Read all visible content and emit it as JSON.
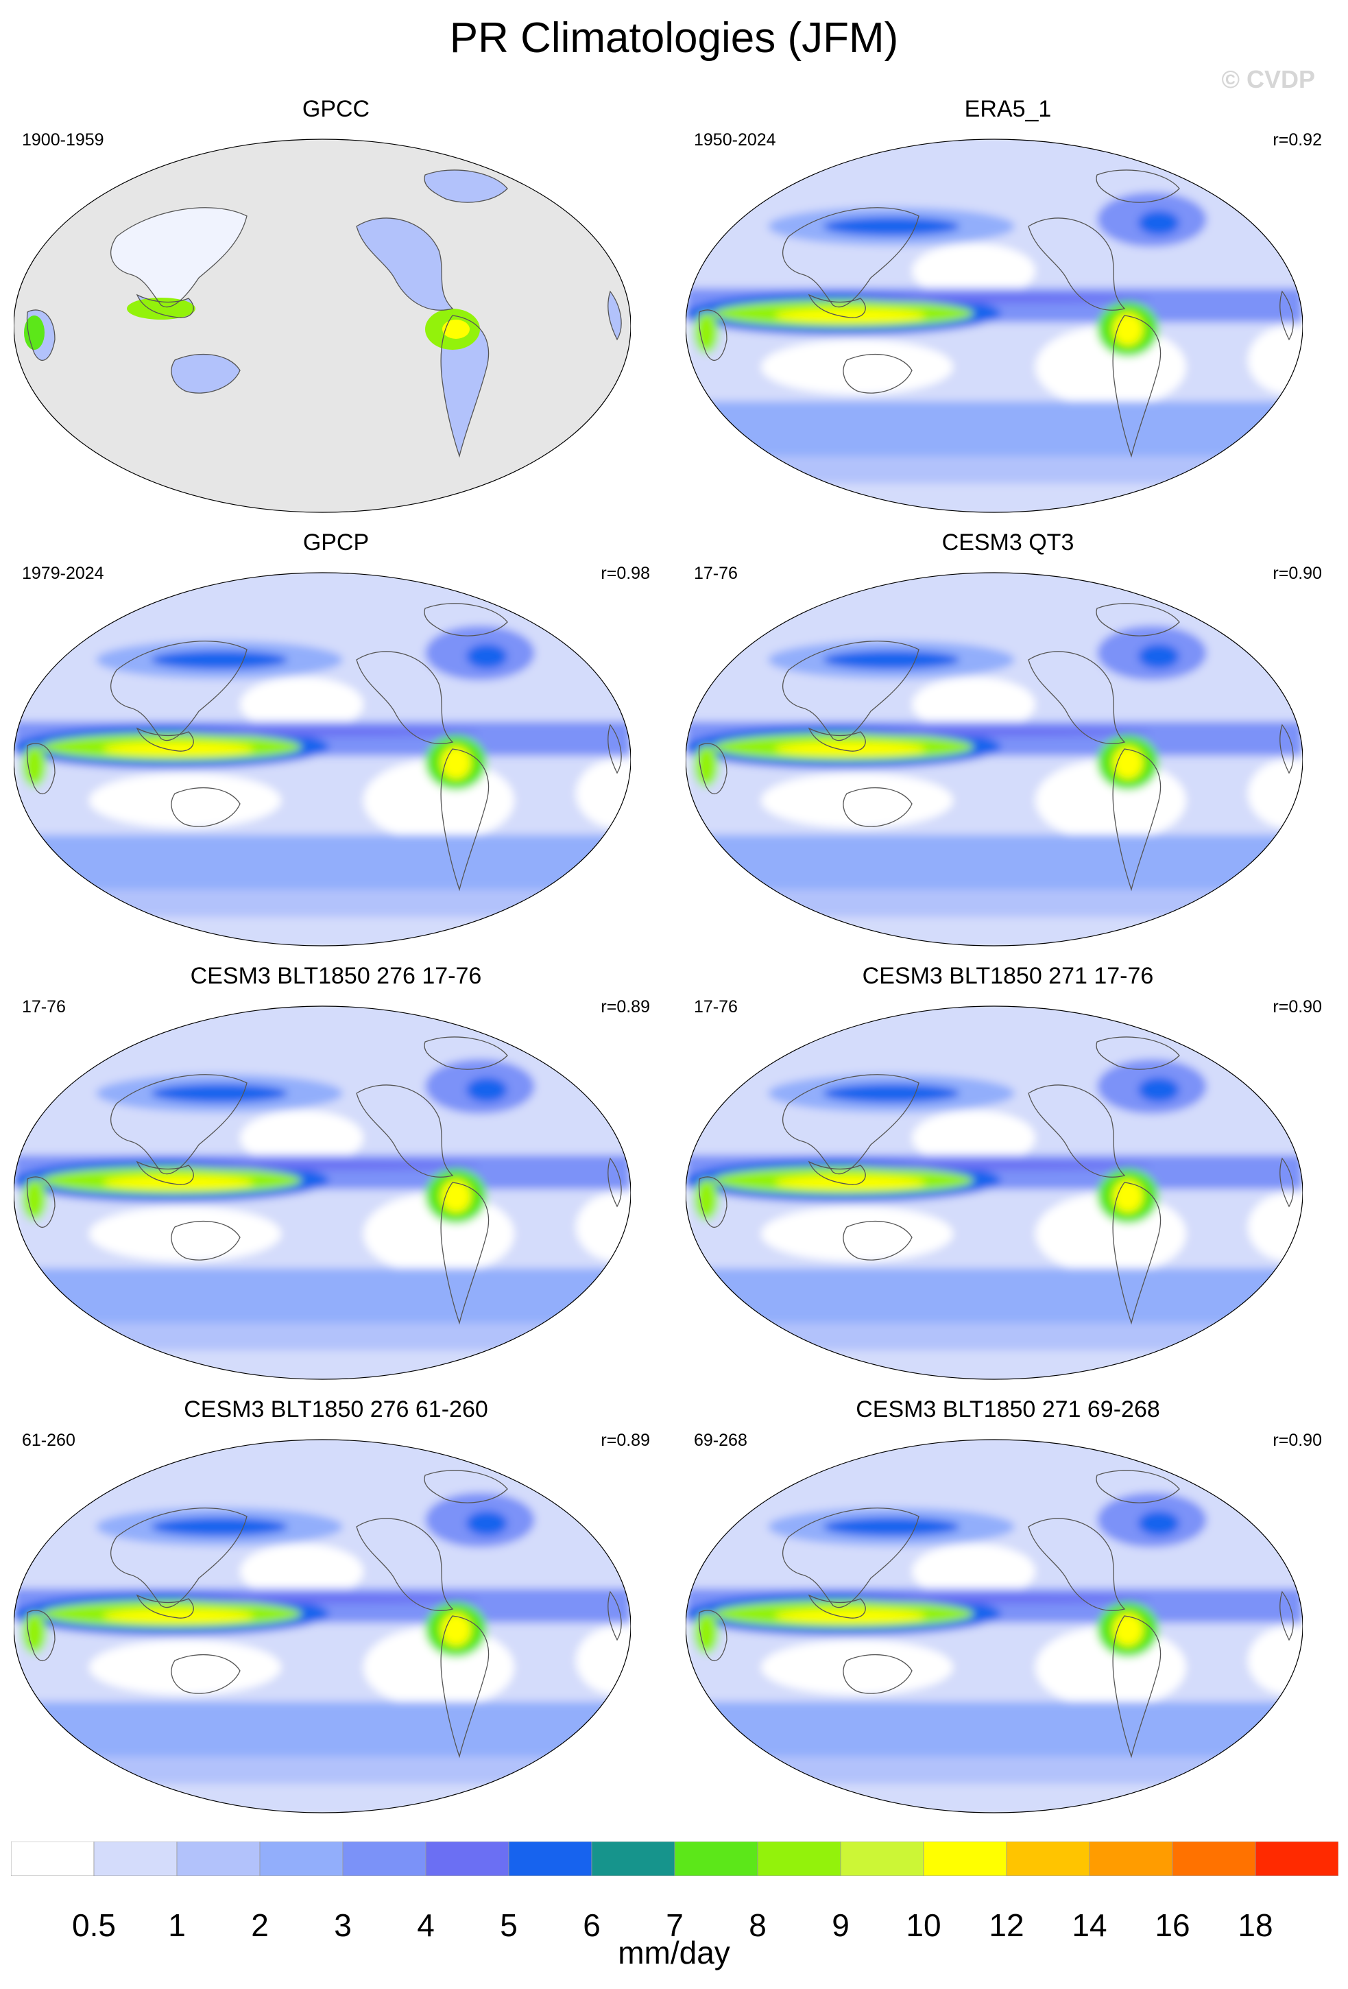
{
  "figure": {
    "title": "PR Climatologies (JFM)",
    "watermark": "© CVDP"
  },
  "panels": [
    {
      "title": "GPCC",
      "period": "1900-1959",
      "corr": "",
      "land_only": true
    },
    {
      "title": "ERA5_1",
      "period": "1950-2024",
      "corr": "r=0.92",
      "land_only": false
    },
    {
      "title": "GPCP",
      "period": "1979-2024",
      "corr": "r=0.98",
      "land_only": false
    },
    {
      "title": "CESM3 QT3",
      "period": "17-76",
      "corr": "r=0.90",
      "land_only": false
    },
    {
      "title": "CESM3 BLT1850 276 17-76",
      "period": "17-76",
      "corr": "r=0.89",
      "land_only": false
    },
    {
      "title": "CESM3 BLT1850 271 17-76",
      "period": "17-76",
      "corr": "r=0.90",
      "land_only": false
    },
    {
      "title": "CESM3 BLT1850 276 61-260",
      "period": "61-260",
      "corr": "r=0.89",
      "land_only": false
    },
    {
      "title": "CESM3 BLT1850 271 69-268",
      "period": "69-268",
      "corr": "r=0.90",
      "land_only": false
    }
  ],
  "colorbar": {
    "units": "mm/day",
    "levels": [
      "0.5",
      "1",
      "2",
      "3",
      "4",
      "5",
      "6",
      "7",
      "8",
      "9",
      "10",
      "12",
      "14",
      "16",
      "18"
    ],
    "colors": [
      "#ffffff",
      "#d4dcfb",
      "#b2c2fb",
      "#92aefb",
      "#7b92f8",
      "#6b6ff3",
      "#1763ee",
      "#16948c",
      "#5ce719",
      "#93f20b",
      "#ccf636",
      "#ffff00",
      "#ffc400",
      "#ff9c00",
      "#ff7200",
      "#ff2a00"
    ]
  },
  "map_colors": {
    "missing": "#e6e6e6",
    "coast": "#555555"
  }
}
